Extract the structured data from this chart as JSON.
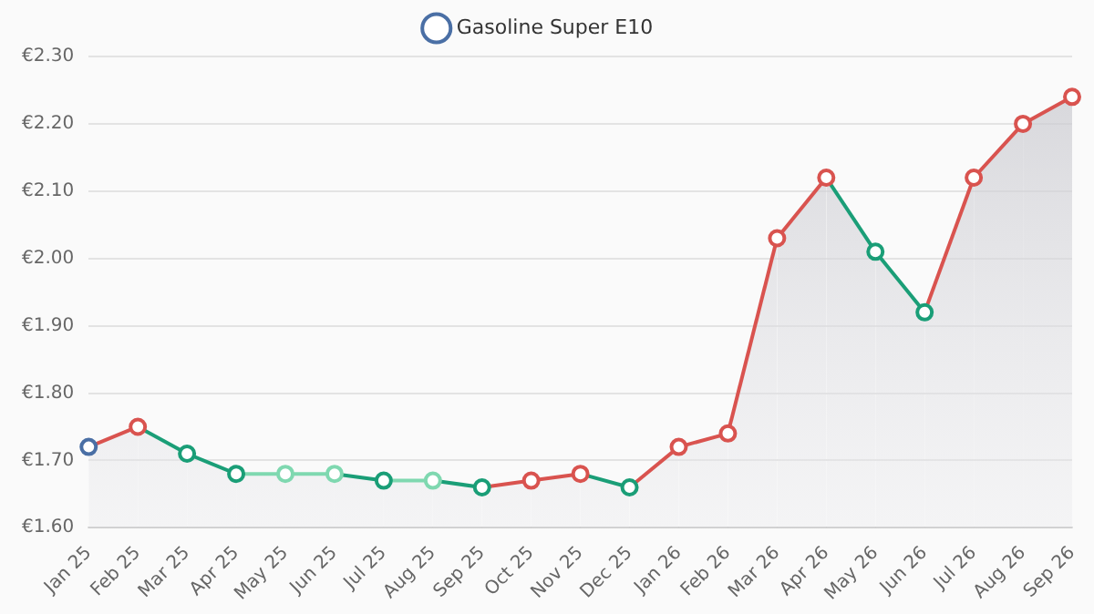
{
  "chart_data": {
    "type": "area",
    "categories": [
      "Jan 25",
      "Feb 25",
      "Mar 25",
      "Apr 25",
      "May 25",
      "Jun 25",
      "Jul 25",
      "Aug 25",
      "Sep 25",
      "Oct 25",
      "Nov 25",
      "Dec 25",
      "Jan 26",
      "Feb 26",
      "Mar 26",
      "Apr 26",
      "May 26",
      "Jun 26",
      "Jul 26",
      "Aug 26",
      "Sep 26"
    ],
    "series": [
      {
        "name": "Gasoline Super E10",
        "color": "#4a6fa5",
        "values": [
          1.72,
          1.75,
          1.71,
          1.68,
          1.68,
          1.68,
          1.67,
          1.67,
          1.66,
          1.67,
          1.68,
          1.66,
          1.72,
          1.74,
          2.03,
          2.12,
          2.01,
          1.92,
          2.12,
          2.2,
          2.24
        ],
        "colors": [
          "#4a6fa5",
          "#d9534f",
          "#1a9e77",
          "#1a9e77",
          "#7fd8b0",
          "#7fd8b0",
          "#1a9e77",
          "#7fd8b0",
          "#1a9e77",
          "#d9534f",
          "#d9534f",
          "#1a9e77",
          "#d9534f",
          "#d9534f",
          "#d9534f",
          "#d9534f",
          "#1a9e77",
          "#1a9e77",
          "#d9534f",
          "#d9534f",
          "#d9534f"
        ]
      }
    ],
    "ylim": [
      1.6,
      2.3
    ],
    "yticks": [
      {
        "value": 1.6,
        "label": "€1.60"
      },
      {
        "value": 1.7,
        "label": "€1.70"
      },
      {
        "value": 1.8,
        "label": "€1.80"
      },
      {
        "value": 1.9,
        "label": "€1.90"
      },
      {
        "value": 2.0,
        "label": "€2.00"
      },
      {
        "value": 2.1,
        "label": "€2.10"
      },
      {
        "value": 2.2,
        "label": "€2.20"
      },
      {
        "value": 2.3,
        "label": "€2.30"
      }
    ],
    "grid": "y",
    "legend": "top",
    "marker": "circle",
    "line_style": "solid"
  }
}
